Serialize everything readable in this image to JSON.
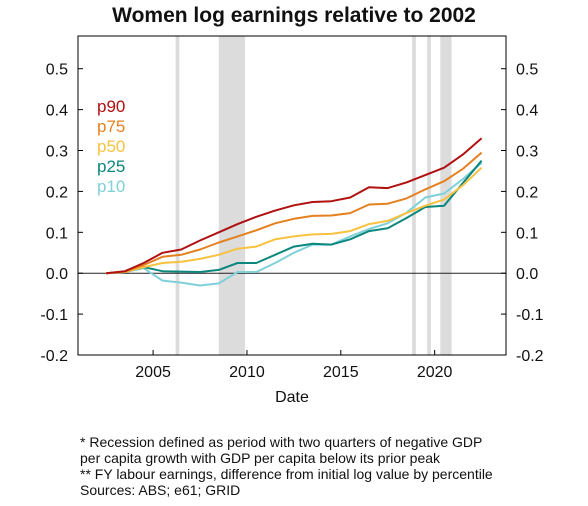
{
  "chart_data": {
    "type": "line",
    "title": "Women log earnings relative to 2002",
    "xlabel": "Date",
    "ylabel": "",
    "xlim": [
      2001.0,
      2023.8
    ],
    "ylim": [
      -0.2,
      0.58
    ],
    "x_ticks": [
      2005,
      2010,
      2015,
      2020
    ],
    "x_tick_labels": [
      "2005",
      "2010",
      "2015",
      "2020"
    ],
    "y_ticks": [
      -0.2,
      -0.1,
      0.0,
      0.1,
      0.2,
      0.3,
      0.4,
      0.5
    ],
    "y_tick_labels": [
      "-0.2",
      "-0.1",
      "0.0",
      "0.1",
      "0.2",
      "0.3",
      "0.4",
      "0.5"
    ],
    "secondary_y_axis": true,
    "grid": false,
    "legend_placement": "left, inline text",
    "recession_shading": [
      [
        2006.2,
        2006.4
      ],
      [
        2008.5,
        2009.9
      ],
      [
        2018.8,
        2019.0
      ],
      [
        2019.6,
        2019.8
      ],
      [
        2020.3,
        2020.9
      ]
    ],
    "recession_color": "#dcdcdc",
    "x": [
      2002.5,
      2003.5,
      2004.5,
      2005.5,
      2006.5,
      2007.5,
      2008.5,
      2009.5,
      2010.5,
      2011.5,
      2012.5,
      2013.5,
      2014.5,
      2015.5,
      2016.5,
      2017.5,
      2018.5,
      2019.5,
      2020.5,
      2021.5,
      2022.5
    ],
    "series": [
      {
        "name": "p90",
        "color": "#b01010",
        "values": [
          0.0,
          0.005,
          0.025,
          0.05,
          0.058,
          0.08,
          0.1,
          0.12,
          0.138,
          0.153,
          0.166,
          0.174,
          0.176,
          0.185,
          0.21,
          0.208,
          0.222,
          0.24,
          0.258,
          0.29,
          0.33
        ]
      },
      {
        "name": "p75",
        "color": "#e5801e",
        "values": [
          0.0,
          0.004,
          0.02,
          0.04,
          0.045,
          0.058,
          0.075,
          0.09,
          0.105,
          0.122,
          0.133,
          0.14,
          0.141,
          0.147,
          0.168,
          0.17,
          0.183,
          0.205,
          0.225,
          0.255,
          0.295
        ]
      },
      {
        "name": "p50",
        "color": "#f8c140",
        "values": [
          0.0,
          0.003,
          0.015,
          0.025,
          0.028,
          0.035,
          0.045,
          0.06,
          0.065,
          0.083,
          0.09,
          0.095,
          0.096,
          0.103,
          0.12,
          0.128,
          0.147,
          0.165,
          0.18,
          0.215,
          0.258
        ]
      },
      {
        "name": "p25",
        "color": "#0b877d",
        "values": [
          0.0,
          0.003,
          0.015,
          0.005,
          0.004,
          0.003,
          0.008,
          0.025,
          0.025,
          0.045,
          0.065,
          0.072,
          0.07,
          0.083,
          0.103,
          0.11,
          0.135,
          0.162,
          0.165,
          0.22,
          0.275
        ]
      },
      {
        "name": "p10",
        "color": "#7fd0d8",
        "values": [
          0.0,
          0.003,
          0.012,
          -0.018,
          -0.023,
          -0.03,
          -0.025,
          0.003,
          0.003,
          0.025,
          0.05,
          0.07,
          0.07,
          0.09,
          0.108,
          0.122,
          0.148,
          0.185,
          0.195,
          0.23,
          0.27
        ]
      }
    ]
  },
  "notes": {
    "line1": "* Recession defined as period with two quarters of negative GDP",
    "line2": "per capita growth with GDP per capita below its prior peak",
    "line3": "** FY labour earnings, difference from initial log value by percentile",
    "line4": "Sources: ABS; e61; GRID"
  }
}
